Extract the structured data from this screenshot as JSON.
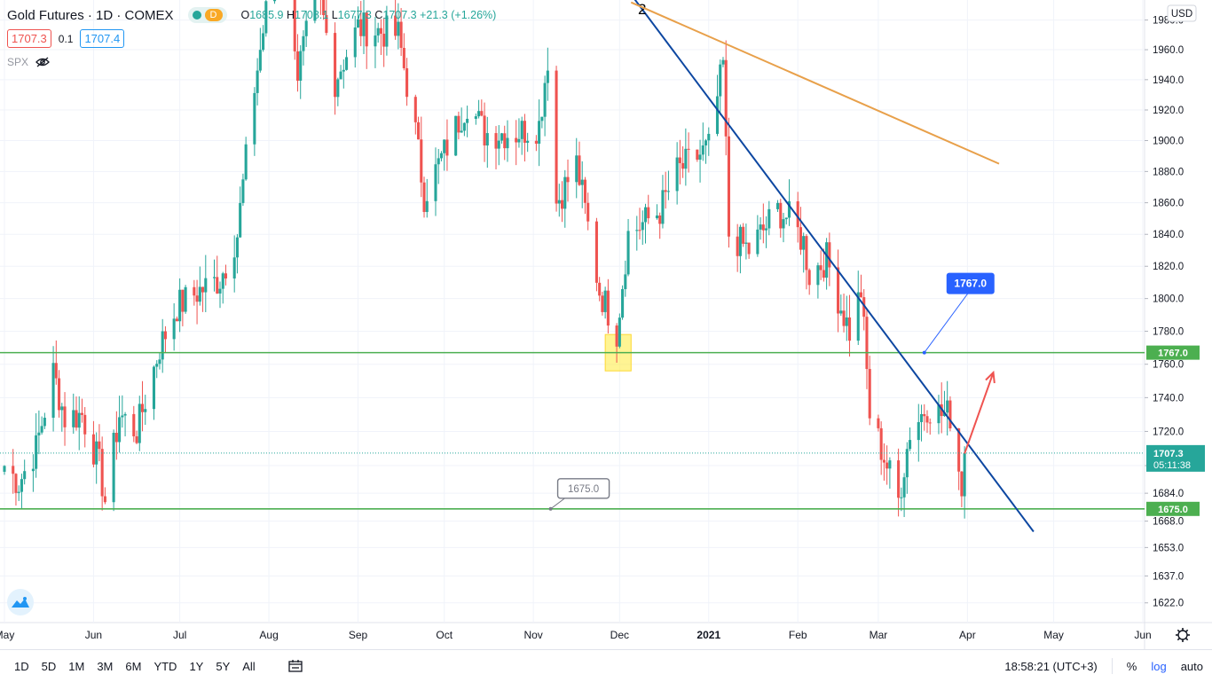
{
  "header": {
    "title": "Gold Futures · 1D · COMEX",
    "badge": "D",
    "ohlc": {
      "o_label": "O",
      "o": "1685.9",
      "h_label": "H",
      "h": "1708.1",
      "l_label": "L",
      "l": "1677.3",
      "c_label": "C",
      "c": "1707.3",
      "change": "+21.3 (+1.26%)"
    },
    "bid": "1707.3",
    "spread": "0.1",
    "ask": "1707.4",
    "overlay_symbol": "SPX"
  },
  "axis": {
    "currency": "USD",
    "price_ticks": [
      "1980.0",
      "1960.0",
      "1940.0",
      "1920.0",
      "1900.0",
      "1880.0",
      "1860.0",
      "1840.0",
      "1820.0",
      "1800.0",
      "1780.0",
      "1760.0",
      "1740.0",
      "1720.0",
      "1700.0",
      "1684.0",
      "1668.0",
      "1653.0",
      "1637.0",
      "1622.0"
    ],
    "time_labels": [
      "May",
      "Jun",
      "Jul",
      "Aug",
      "Sep",
      "Oct",
      "Nov",
      "Dec",
      "2021",
      "Feb",
      "Mar",
      "Apr",
      "May",
      "Jun"
    ],
    "last_price_label": "1707.3",
    "countdown": "05:11:38",
    "level_labels": [
      "1767.0",
      "1675.0"
    ]
  },
  "chart_data": {
    "type": "candlestick",
    "symbol": "Gold Futures",
    "interval": "1D",
    "y_scale": "log",
    "ylim": [
      1615,
      1990
    ],
    "x_range": [
      "2020-05-01",
      "2021-06-01"
    ],
    "last_price": 1707.3,
    "horizontal_levels": [
      {
        "price": 1767.0,
        "label": "1767.0",
        "color": "#4caf50"
      },
      {
        "price": 1675.0,
        "label": "1675.0",
        "color": "#4caf50"
      }
    ],
    "trend_lines": [
      {
        "name": "descending-trendline",
        "color": "#0d47a1",
        "points": [
          [
            "2020-12-04",
            2000
          ],
          [
            "2021-04-24",
            1662
          ]
        ],
        "label": "2"
      },
      {
        "name": "resistance-trendline",
        "color": "#e8a04a",
        "points": [
          [
            "2020-12-05",
            1992
          ],
          [
            "2021-04-12",
            1885
          ]
        ]
      }
    ],
    "arrow": {
      "color": "#ef5350",
      "from": [
        "2021-03-31",
        1707
      ],
      "to": [
        "2021-04-10",
        1755
      ]
    },
    "highlight_box": {
      "color": "#ffeb3b",
      "x": [
        "2020-11-26",
        "2020-12-05"
      ],
      "y": [
        1756,
        1778
      ]
    },
    "callouts": [
      {
        "label": "1767.0",
        "anchor": [
          "2021-03-17",
          1767
        ],
        "style": "filled-blue"
      },
      {
        "label": "1675.0",
        "anchor": [
          "2020-11-07",
          1675
        ],
        "style": "outlined"
      }
    ],
    "keypoints": [
      [
        "2020-05-01",
        1700
      ],
      [
        "2020-05-06",
        1690
      ],
      [
        "2020-05-12",
        1710
      ],
      [
        "2020-05-18",
        1755
      ],
      [
        "2020-05-22",
        1728
      ],
      [
        "2020-05-28",
        1730
      ],
      [
        "2020-06-03",
        1700
      ],
      [
        "2020-06-05",
        1680
      ],
      [
        "2020-06-10",
        1730
      ],
      [
        "2020-06-16",
        1720
      ],
      [
        "2020-06-24",
        1770
      ],
      [
        "2020-06-30",
        1795
      ],
      [
        "2020-07-08",
        1805
      ],
      [
        "2020-07-15",
        1812
      ],
      [
        "2020-07-21",
        1840
      ],
      [
        "2020-07-27",
        1935
      ],
      [
        "2020-08-06",
        2060
      ],
      [
        "2020-08-11",
        1945
      ],
      [
        "2020-08-18",
        2000
      ],
      [
        "2020-08-24",
        1940
      ],
      [
        "2020-09-01",
        1975
      ],
      [
        "2020-09-15",
        1970
      ],
      [
        "2020-09-21",
        1905
      ],
      [
        "2020-09-24",
        1865
      ],
      [
        "2020-09-28",
        1880
      ],
      [
        "2020-10-09",
        1925
      ],
      [
        "2020-10-15",
        1905
      ],
      [
        "2020-10-26",
        1905
      ],
      [
        "2020-11-03",
        1910
      ],
      [
        "2020-11-06",
        1955
      ],
      [
        "2020-11-09",
        1860
      ],
      [
        "2020-11-16",
        1885
      ],
      [
        "2020-11-24",
        1805
      ],
      [
        "2020-11-30",
        1780
      ],
      [
        "2020-12-04",
        1840
      ],
      [
        "2020-12-15",
        1855
      ],
      [
        "2020-12-21",
        1880
      ],
      [
        "2021-01-01",
        1895
      ],
      [
        "2021-01-06",
        1950
      ],
      [
        "2021-01-08",
        1840
      ],
      [
        "2021-01-15",
        1830
      ],
      [
        "2021-01-25",
        1855
      ],
      [
        "2021-01-29",
        1850
      ],
      [
        "2021-02-03",
        1835
      ],
      [
        "2021-02-05",
        1815
      ],
      [
        "2021-02-11",
        1825
      ],
      [
        "2021-02-16",
        1795
      ],
      [
        "2021-02-19",
        1780
      ],
      [
        "2021-02-23",
        1805
      ],
      [
        "2021-02-26",
        1730
      ],
      [
        "2021-03-04",
        1700
      ],
      [
        "2021-03-08",
        1680
      ],
      [
        "2021-03-12",
        1720
      ],
      [
        "2021-03-18",
        1735
      ],
      [
        "2021-03-23",
        1730
      ],
      [
        "2021-03-26",
        1730
      ],
      [
        "2021-03-30",
        1688
      ],
      [
        "2021-03-31",
        1707.3
      ]
    ]
  },
  "toolbar": {
    "ranges": [
      "1D",
      "5D",
      "1M",
      "3M",
      "6M",
      "YTD",
      "1Y",
      "5Y",
      "All"
    ],
    "time": "18:58:21 (UTC+3)",
    "percent": "%",
    "log": "log",
    "auto": "auto"
  },
  "colors": {
    "up": "#26a69a",
    "down": "#ef5350",
    "grid": "#f0f3fa",
    "level": "#4caf50",
    "blue_line": "#0d47a1",
    "orange_line": "#e8a04a"
  }
}
